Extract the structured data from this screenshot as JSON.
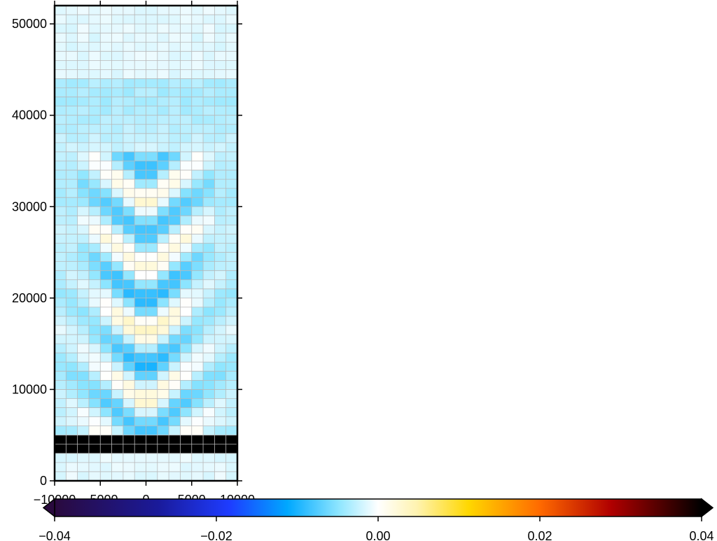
{
  "chart_data": [
    {
      "type": "heatmap",
      "title": "",
      "xlabel": "",
      "ylabel": "",
      "xlim": [
        -10000,
        10000
      ],
      "ylim": [
        0,
        52000
      ],
      "x_ticks": [
        -10000,
        -5000,
        0,
        5000,
        10000
      ],
      "x_tick_labels": [
        "−10000",
        "−5000",
        "0",
        "5000",
        "10000"
      ],
      "y_ticks": [
        0,
        10000,
        20000,
        30000,
        40000,
        50000
      ],
      "y_tick_labels": [
        "0",
        "10000",
        "20000",
        "30000",
        "40000",
        "50000"
      ],
      "grid": true,
      "cell_grid": {
        "columns": 16,
        "rows": 52,
        "x_step": 1250,
        "y_step": 1000
      },
      "features": [
        {
          "name": "solid block",
          "y_range": [
            2600,
            5000
          ],
          "color": "#000000"
        }
      ]
    },
    {
      "type": "colorbar",
      "orientation": "horizontal",
      "range": [
        -0.04,
        0.04
      ],
      "ticks": [
        -0.04,
        -0.02,
        0.0,
        0.02,
        0.04
      ],
      "tick_labels": [
        "−0.04",
        "−0.02",
        "0.00",
        "0.02",
        "0.04"
      ],
      "colors": {
        "min": "#2a0a3e",
        "blue": "#1e3cff",
        "cyan": "#00bfff",
        "zero": "#ffffff",
        "yellow": "#ffd700",
        "orange": "#ff6a00",
        "red": "#b00000",
        "max": "#000000"
      }
    }
  ]
}
